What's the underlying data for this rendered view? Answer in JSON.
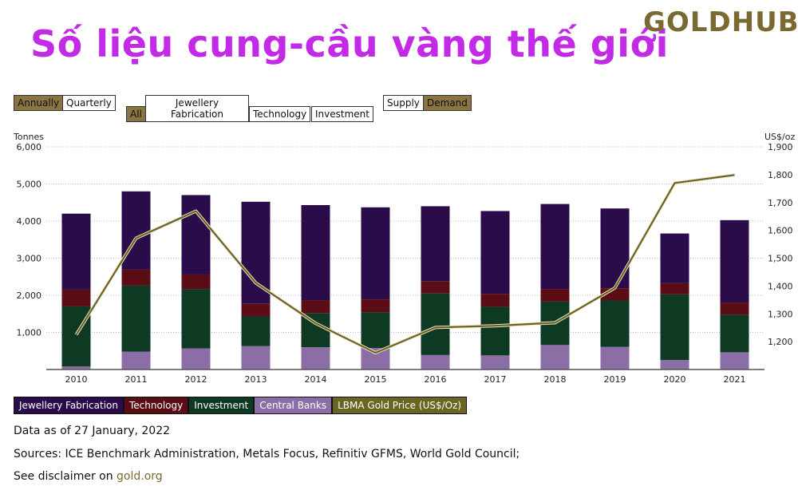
{
  "page": {
    "title": "Số liệu cung-cầu vàng thế giới",
    "logo": "GOLDHUB"
  },
  "controls": {
    "annually": "Annually",
    "quarterly": "Quarterly",
    "all": "All",
    "jewellery_line1": "Jewellery",
    "jewellery_line2": "Fabrication",
    "technology": "Technology",
    "investment": "Investment",
    "supply": "Supply",
    "demand": "Demand"
  },
  "colors": {
    "jewellery": "#2a0c4a",
    "technology": "#5a0d14",
    "investment": "#0e3a24",
    "central_banks": "#8b6ea6",
    "gold_price": "#6b6524",
    "accent": "#8a7442"
  },
  "chart_data": {
    "type": "bar",
    "stacked": true,
    "ylabel": "Tonnes",
    "y2label": "US$/oz",
    "ylim": [
      0,
      6000
    ],
    "y2lim": [
      1100,
      1900
    ],
    "yticks": [
      "6,000",
      "5,000",
      "4,000",
      "3,000",
      "2,000",
      "1,000"
    ],
    "y2ticks": [
      "1,900",
      "1,800",
      "1,700",
      "1,600",
      "1,500",
      "1,400",
      "1,300",
      "1,200"
    ],
    "categories": [
      "2010",
      "2011",
      "2012",
      "2013",
      "2014",
      "2015",
      "2016",
      "2017",
      "2018",
      "2019",
      "2020",
      "2021"
    ],
    "series": [
      {
        "name": "Central Banks",
        "values": [
          80,
          480,
          570,
          630,
          600,
          580,
          390,
          380,
          660,
          610,
          255,
          465
        ]
      },
      {
        "name": "Investment",
        "values": [
          1620,
          1780,
          1600,
          800,
          920,
          960,
          1660,
          1310,
          1170,
          1250,
          1770,
          1010
        ]
      },
      {
        "name": "Technology",
        "values": [
          460,
          430,
          390,
          350,
          350,
          350,
          330,
          350,
          340,
          330,
          300,
          330
        ]
      },
      {
        "name": "Jewellery Fabrication",
        "values": [
          2040,
          2110,
          2140,
          2740,
          2560,
          2480,
          2020,
          2230,
          2290,
          2150,
          1340,
          2220
        ]
      }
    ],
    "line": {
      "name": "LBMA Gold Price (US$/Oz)",
      "values": [
        1225,
        1572,
        1669,
        1411,
        1266,
        1160,
        1251,
        1257,
        1268,
        1393,
        1770,
        1799
      ]
    },
    "legend": [
      "Jewellery Fabrication",
      "Technology",
      "Investment",
      "Central Banks",
      "LBMA Gold Price (US$/Oz)"
    ]
  },
  "notes": {
    "date": "Data as of 27 January, 2022",
    "sources": "Sources: ICE Benchmark Administration, Metals Focus, Refinitiv GFMS, World Gold Council;",
    "disclaimer_prefix": "See disclaimer on ",
    "disclaimer_link": "gold.org"
  }
}
